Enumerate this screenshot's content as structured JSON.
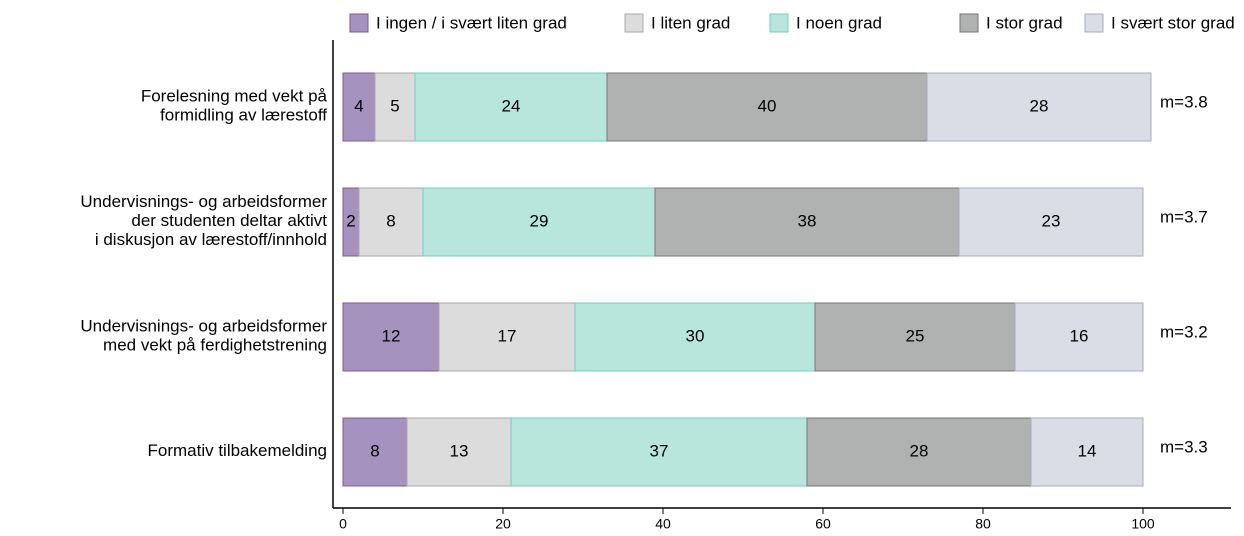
{
  "chart_data": {
    "type": "stacked-barh",
    "categories": [
      [
        "Forelesning med vekt på",
        "formidling av lærestoff"
      ],
      [
        "Undervisnings- og arbeidsformer",
        "der studenten deltar aktivt",
        "i diskusjon av lærestoff/innhold"
      ],
      [
        "Undervisnings- og arbeidsformer",
        "med vekt på ferdighetstrening"
      ],
      [
        "Formativ tilbakemelding"
      ]
    ],
    "series": [
      {
        "name": "I ingen / i svært liten grad",
        "color": "#a692be",
        "stroke": "#7b5a94",
        "values": [
          4,
          2,
          12,
          8
        ]
      },
      {
        "name": "I liten grad",
        "color": "#dcdcdc",
        "stroke": "#aaaaaa",
        "values": [
          5,
          8,
          17,
          13
        ]
      },
      {
        "name": "I noen grad",
        "color": "#b8e6dd",
        "stroke": "#6fcfbf",
        "values": [
          24,
          29,
          30,
          37
        ]
      },
      {
        "name": "I stor grad",
        "color": "#b0b2b2",
        "stroke": "#777777",
        "values": [
          40,
          38,
          25,
          28
        ]
      },
      {
        "name": "I svært stor grad",
        "color": "#dadde6",
        "stroke": "#a8abbc",
        "values": [
          28,
          23,
          16,
          14
        ]
      }
    ],
    "annotations": [
      "m=3.8",
      "m=3.7",
      "m=3.2",
      "m=3.3"
    ],
    "xlim": [
      0,
      111
    ],
    "xticks": [
      0,
      20,
      40,
      60,
      80,
      100
    ]
  }
}
